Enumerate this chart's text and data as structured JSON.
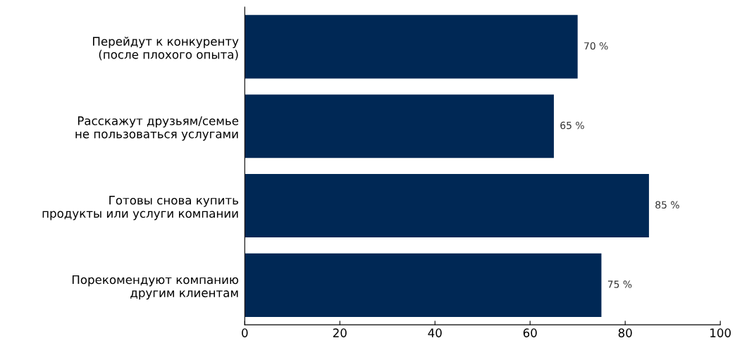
{
  "chart_data": {
    "type": "bar",
    "orientation": "horizontal",
    "categories": [
      "Перейдут к конкуренту\n(после плохого опыта)",
      "Расскажут друзьям/семье\nне пользоваться услугами",
      "Готовы снова купить\nпродукты или услуги компании",
      "Порекомендуют компанию\nдругим клиентам"
    ],
    "values": [
      70,
      65,
      85,
      75
    ],
    "value_labels": [
      "70 %",
      "65 %",
      "85 %",
      "75 %"
    ],
    "color": "#002855",
    "xlim": [
      0,
      100
    ],
    "xticks": [
      0,
      20,
      40,
      60,
      80,
      100
    ],
    "grid": false,
    "legend": false
  }
}
